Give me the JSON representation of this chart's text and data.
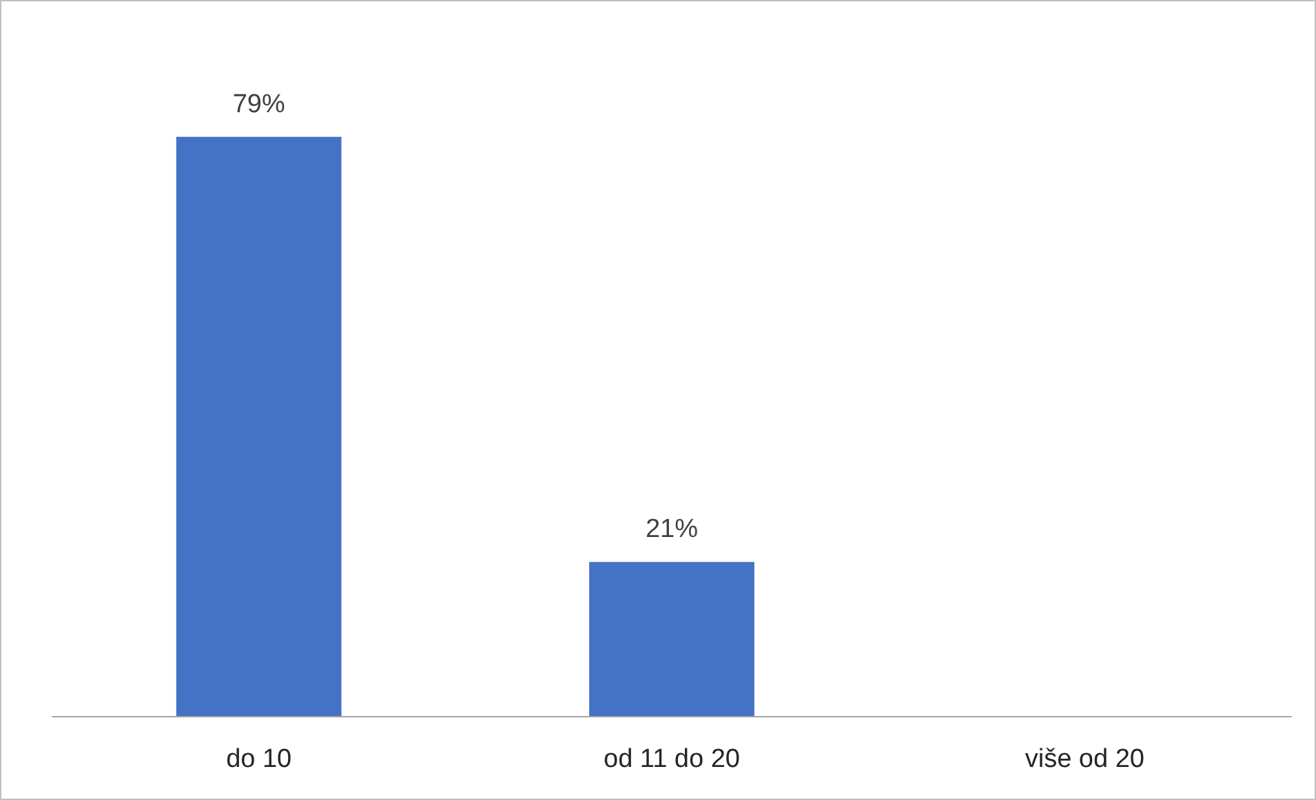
{
  "chart_data": {
    "type": "bar",
    "categories": [
      "do 10",
      "od 11 do 20",
      "više od 20"
    ],
    "values": [
      79,
      21,
      null
    ],
    "value_labels": [
      "79%",
      "21%",
      null
    ],
    "color": "#4472c4"
  }
}
